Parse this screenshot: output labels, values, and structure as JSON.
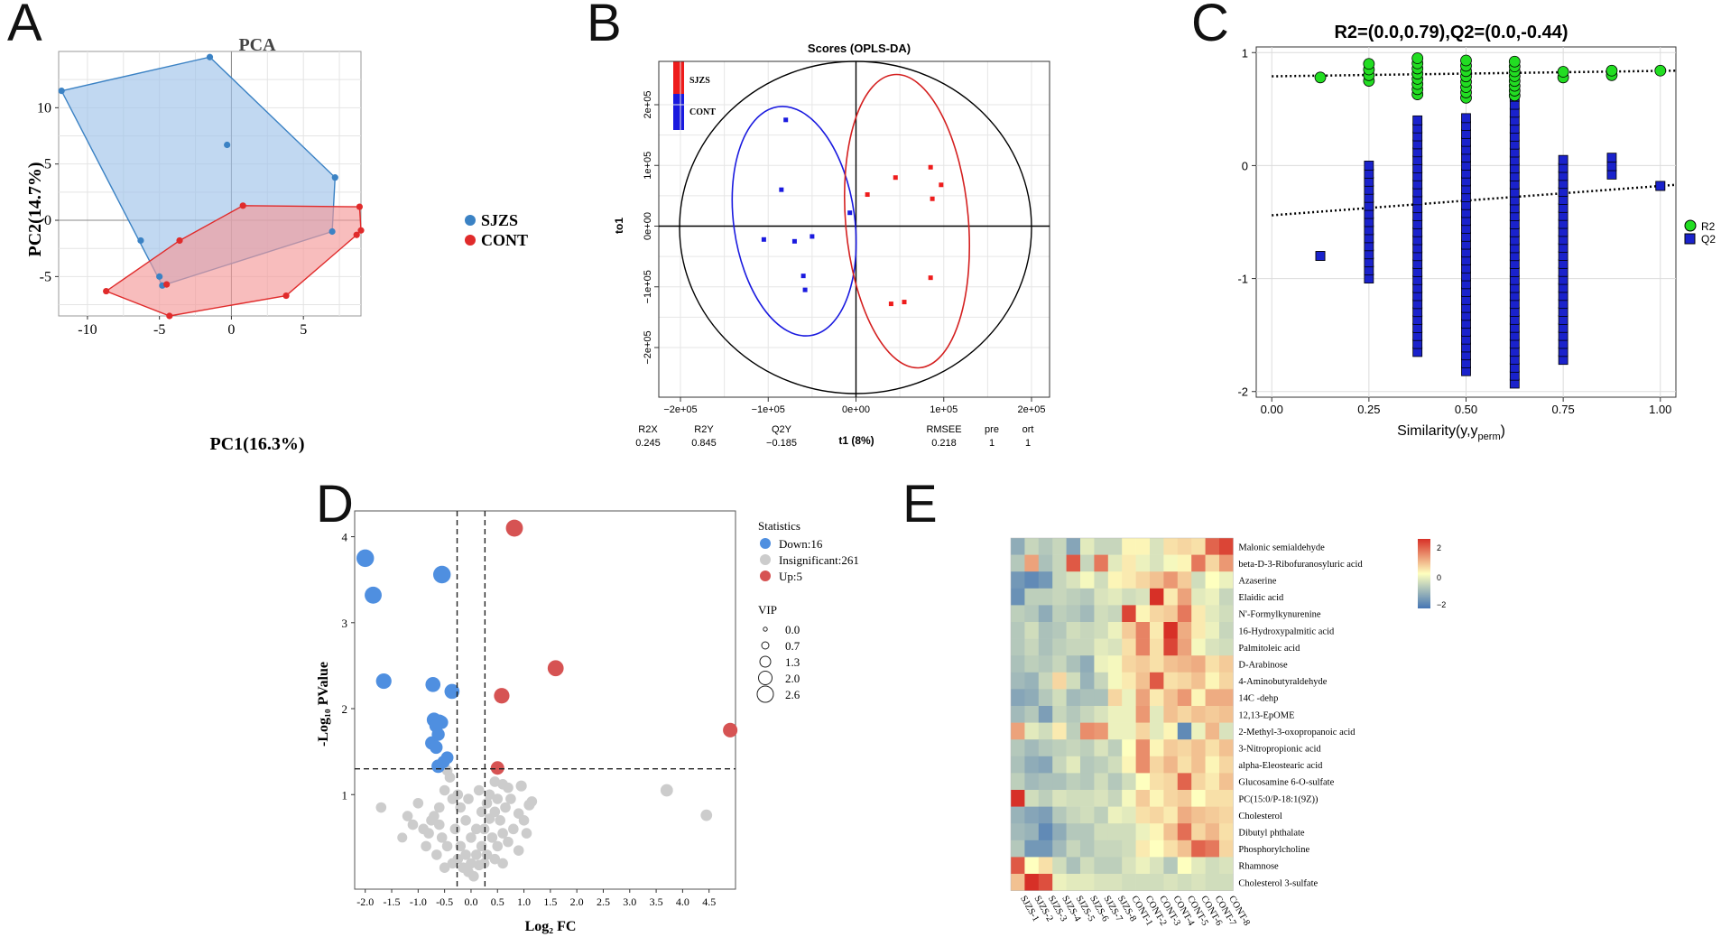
{
  "chart_data": [
    {
      "panel": "A",
      "type": "scatter",
      "title": "PCA",
      "xlabel": "PC1(16.3%)",
      "ylabel": "PC2(14.7%)",
      "xlim": [
        -12,
        9
      ],
      "ylim": [
        -8.5,
        15
      ],
      "xticks": [
        "-10",
        "-5",
        "0",
        "5"
      ],
      "yticks": [
        "-5",
        "0",
        "5",
        "10"
      ],
      "legend": [
        "SJZS",
        "CONT"
      ],
      "colors": {
        "SJZS": "#3b82c4",
        "CONT": "#e02b2b",
        "SJZS_fill": "#9fc3ea",
        "CONT_fill": "#f49a9a"
      },
      "series": [
        {
          "name": "SJZS",
          "x": [
            -11.8,
            -1.5,
            -0.3,
            7.2,
            7.0,
            -4.8,
            -5.0,
            -6.3
          ],
          "y": [
            11.5,
            14.5,
            6.7,
            3.8,
            -1.0,
            -5.8,
            -5.0,
            -1.8
          ]
        },
        {
          "name": "CONT",
          "x": [
            -8.7,
            -4.3,
            3.8,
            8.7,
            9.0,
            8.9,
            0.8,
            -3.6,
            -4.5
          ],
          "y": [
            -6.3,
            -8.5,
            -6.7,
            -1.3,
            -0.9,
            1.2,
            1.3,
            -1.8,
            -5.7
          ]
        }
      ]
    },
    {
      "panel": "B",
      "type": "scatter",
      "title": "Scores (OPLS-DA)",
      "xlabel": "t1 (8%)",
      "ylabel": "to1",
      "xticks": [
        "−2e+05",
        "−1e+05",
        "0e+00",
        "1e+05",
        "2e+05"
      ],
      "yticks": [
        "2e+05",
        "1e+05",
        "0e+00",
        "−1e+05",
        "−2e+05"
      ],
      "legend": [
        "SJZS",
        "CONT"
      ],
      "colors": {
        "SJZS": "#ee1c1c",
        "CONT": "#1a1adf"
      },
      "series": [
        {
          "name": "CONT",
          "x": [
            -80000,
            -85000,
            -105000,
            -70000,
            -50000,
            -60000,
            -58000,
            -7000
          ],
          "y": [
            175000,
            60000,
            -22000,
            -25000,
            -17000,
            -82000,
            -105000,
            22000
          ]
        },
        {
          "name": "SJZS",
          "x": [
            13000,
            45000,
            85000,
            97000,
            87000,
            85000,
            40000,
            55000
          ],
          "y": [
            52000,
            80000,
            97000,
            68000,
            45000,
            -85000,
            -128000,
            -125000
          ]
        }
      ],
      "metrics": {
        "headers": [
          "R2X",
          "R2Y",
          "Q2Y",
          "RMSEE",
          "pre",
          "ort"
        ],
        "values": [
          "0.245",
          "0.845",
          "−0.185",
          "0.218",
          "1",
          "1"
        ]
      }
    },
    {
      "panel": "C",
      "type": "scatter",
      "title": "R2=(0.0,0.79),Q2=(0.0,-0.44)",
      "xlabel": "Similarity(y,y",
      "xlabel_sub": "perm",
      "xlabel_end": ")",
      "xlim": [
        -0.04,
        1.04
      ],
      "ylim": [
        -2.05,
        1.05
      ],
      "xticks": [
        "0.00",
        "0.25",
        "0.50",
        "0.75",
        "1.00"
      ],
      "yticks": [
        "1",
        "0",
        "-1",
        "-2"
      ],
      "legend": [
        "R2",
        "Q2"
      ],
      "colors": {
        "R2": "#22dd22",
        "Q2": "#1a22cc"
      },
      "r2_line": [
        0.79,
        0.84
      ],
      "q2_line": [
        -0.44,
        -0.17
      ],
      "r2_points": {
        "x": [
          0.125,
          0.25,
          0.375,
          0.5,
          0.625,
          0.75,
          0.875,
          1.0
        ],
        "ymin": [
          0.78,
          0.75,
          0.63,
          0.6,
          0.62,
          0.78,
          0.8,
          0.84
        ],
        "ymax": [
          0.78,
          0.9,
          0.95,
          0.93,
          0.92,
          0.83,
          0.84,
          0.84
        ]
      },
      "q2_points": {
        "x": [
          0.125,
          0.25,
          0.375,
          0.5,
          0.625,
          0.75,
          0.875,
          1.0
        ],
        "ymin": [
          -0.8,
          -1.0,
          -1.65,
          -1.82,
          -1.93,
          -1.72,
          -0.08,
          -0.18
        ],
        "ymax": [
          -0.8,
          0.0,
          0.4,
          0.42,
          0.75,
          0.05,
          0.07,
          -0.18
        ]
      }
    },
    {
      "panel": "D",
      "type": "scatter",
      "title": "",
      "xlabel": "Log₂ FC",
      "ylabel": "-Log₁₀ PValue",
      "xlim": [
        -2.2,
        5.0
      ],
      "ylim": [
        -0.1,
        4.3
      ],
      "xticks": [
        "-2.0",
        "-1.5",
        "-1.0",
        "-0.5",
        "0.0",
        "0.5",
        "1.0",
        "1.5",
        "2.0",
        "2.5",
        "3.0",
        "3.5",
        "4.0",
        "4.5"
      ],
      "yticks": [
        "1",
        "2",
        "3",
        "4"
      ],
      "thresholds": {
        "x": [
          -0.263,
          0.263
        ],
        "y": 1.3
      },
      "legend_statistics": {
        "title": "Statistics",
        "items": [
          "Down:16",
          "Insignificant:261",
          "Up:5"
        ],
        "colors": [
          "#4f8fe0",
          "#cccccc",
          "#d65353"
        ]
      },
      "legend_vip": {
        "title": "VIP",
        "items": [
          "0.0",
          "0.7",
          "1.3",
          "2.0",
          "2.6"
        ]
      },
      "down_points": [
        [
          -2.0,
          3.75,
          2.4
        ],
        [
          -1.85,
          3.32,
          2.3
        ],
        [
          -0.55,
          3.56,
          2.4
        ],
        [
          -1.65,
          2.32,
          2.0
        ],
        [
          -0.72,
          2.28,
          1.9
        ],
        [
          -0.36,
          2.2,
          1.9
        ],
        [
          -0.7,
          1.87,
          1.8
        ],
        [
          -0.6,
          1.85,
          1.7
        ],
        [
          -0.56,
          1.84,
          1.6
        ],
        [
          -0.66,
          1.8,
          1.6
        ],
        [
          -0.62,
          1.7,
          1.5
        ],
        [
          -0.74,
          1.6,
          1.6
        ],
        [
          -0.66,
          1.55,
          1.5
        ],
        [
          -0.62,
          1.33,
          1.6
        ],
        [
          -0.52,
          1.38,
          1.4
        ],
        [
          -0.45,
          1.43,
          1.4
        ]
      ],
      "up_points": [
        [
          0.82,
          4.1,
          2.3
        ],
        [
          1.6,
          2.47,
          2.1
        ],
        [
          0.58,
          2.15,
          2.0
        ],
        [
          0.5,
          1.31,
          1.6
        ],
        [
          4.9,
          1.75,
          1.8
        ]
      ],
      "insig_points": [
        [
          3.7,
          1.05,
          1.4
        ],
        [
          4.45,
          0.76,
          1.2
        ],
        [
          -1.7,
          0.85,
          1.0
        ],
        [
          -1.0,
          0.9,
          1.0
        ],
        [
          -1.2,
          0.75,
          1.0
        ],
        [
          -0.9,
          0.6,
          1.0
        ],
        [
          -1.3,
          0.5,
          0.9
        ],
        [
          1.1,
          0.88,
          1.1
        ],
        [
          0.95,
          1.1,
          1.1
        ],
        [
          1.15,
          0.92,
          1.0
        ],
        [
          0.75,
          0.95,
          1.0
        ],
        [
          0.7,
          1.08,
          1.0
        ],
        [
          0.6,
          1.12,
          1.0
        ],
        [
          0.9,
          0.78,
          1.0
        ],
        [
          0.5,
          0.95,
          1.0
        ],
        [
          0.45,
          0.8,
          1.0
        ],
        [
          0.35,
          0.72,
          1.0
        ],
        [
          -0.35,
          0.95,
          1.0
        ],
        [
          -0.5,
          1.05,
          1.0
        ],
        [
          -0.4,
          1.2,
          1.0
        ],
        [
          -0.6,
          0.85,
          1.0
        ],
        [
          -0.75,
          0.7,
          1.0
        ],
        [
          -0.8,
          0.55,
          1.0
        ],
        [
          -0.3,
          0.6,
          1.0
        ],
        [
          0.25,
          0.6,
          1.0
        ],
        [
          0.4,
          0.5,
          1.0
        ],
        [
          0.6,
          0.55,
          1.0
        ],
        [
          0.8,
          0.6,
          1.0
        ],
        [
          0.2,
          0.4,
          1.0
        ],
        [
          -0.2,
          0.4,
          1.0
        ],
        [
          -0.1,
          0.3,
          1.0
        ],
        [
          0.1,
          0.3,
          1.0
        ],
        [
          0.0,
          0.2,
          1.0
        ],
        [
          -0.05,
          0.1,
          1.0
        ],
        [
          0.05,
          0.05,
          1.0
        ],
        [
          -0.15,
          0.15,
          1.0
        ],
        [
          0.15,
          0.18,
          1.0
        ],
        [
          -0.25,
          0.25,
          1.0
        ],
        [
          0.3,
          0.3,
          1.0
        ],
        [
          -0.45,
          0.4,
          1.0
        ],
        [
          0.5,
          0.4,
          1.0
        ],
        [
          -0.55,
          0.5,
          1.0
        ],
        [
          0.7,
          0.45,
          1.0
        ],
        [
          -0.65,
          0.3,
          1.0
        ],
        [
          0.9,
          0.35,
          1.0
        ],
        [
          -0.85,
          0.4,
          1.0
        ],
        [
          0.0,
          0.5,
          1.0
        ],
        [
          0.1,
          0.6,
          1.0
        ],
        [
          -0.1,
          0.7,
          1.0
        ],
        [
          0.2,
          0.8,
          1.0
        ],
        [
          -0.2,
          0.85,
          1.0
        ],
        [
          0.3,
          0.9,
          1.0
        ],
        [
          0.35,
          1.0,
          1.0
        ],
        [
          -0.25,
          1.0,
          1.0
        ],
        [
          0.45,
          1.15,
          1.0
        ],
        [
          -0.45,
          1.28,
          1.0
        ],
        [
          0.15,
          1.05,
          1.0
        ],
        [
          -0.05,
          0.95,
          1.0
        ],
        [
          0.55,
          0.7,
          1.0
        ],
        [
          -0.7,
          0.75,
          1.0
        ],
        [
          0.65,
          0.85,
          1.0
        ],
        [
          -0.6,
          0.65,
          1.0
        ],
        [
          1.0,
          0.7,
          1.0
        ],
        [
          1.05,
          0.55,
          1.0
        ],
        [
          -1.1,
          0.65,
          1.0
        ],
        [
          0.25,
          0.2,
          1.0
        ],
        [
          -0.35,
          0.2,
          1.0
        ],
        [
          0.45,
          0.25,
          1.0
        ],
        [
          -0.5,
          0.15,
          1.0
        ],
        [
          0.6,
          0.2,
          1.0
        ]
      ]
    },
    {
      "panel": "E",
      "type": "heatmap",
      "columns": [
        "SJZS-1",
        "SJZS-2",
        "SJZS-3",
        "SJZS-4",
        "SJZS-5",
        "SJZS-6",
        "SJZS-7",
        "SJZS-8",
        "CONT-1",
        "CONT-2",
        "CONT-3",
        "CONT-4",
        "CONT-5",
        "CONT-6",
        "CONT-7",
        "CONT-8"
      ],
      "rows": [
        "Malonic semialdehyde",
        "beta-D-3-Ribofuranosyluric acid",
        "Azaserine",
        "Elaidic acid",
        "N'-Formylkynurenine",
        "16-Hydroxypalmitic acid",
        "Palmitoleic acid",
        "D-Arabinose",
        "4-Aminobutyraldehyde",
        "14C -dehp",
        "12,13-EpOME",
        "2-Methyl-3-oxopropanoic acid",
        "3-Nitropropionic acid",
        "alpha-Eleostearic acid",
        "Glucosamine 6-O-sulfate",
        "PC(15:0/P-18:1(9Z))",
        "Cholesterol",
        "Dibutyl phthalate",
        "Phosphorylcholine",
        "Rhamnose",
        "Cholesterol 3-sulfate"
      ],
      "colorbar": {
        "min": -2,
        "max": 2,
        "ticks": [
          "2",
          "0",
          "−2"
        ]
      },
      "values": [
        [
          -1.2,
          -0.6,
          -0.8,
          -0.6,
          -1.3,
          -0.3,
          -0.6,
          -0.6,
          0.1,
          0.1,
          -0.4,
          0.3,
          0.4,
          0.3,
          1.5,
          1.8
        ],
        [
          -0.8,
          0.9,
          -0.9,
          -0.6,
          1.6,
          -0.6,
          1.3,
          -0.3,
          0.2,
          -0.2,
          -0.4,
          -0.1,
          0.1,
          1.3,
          0.4,
          1.0
        ],
        [
          -1.5,
          -1.7,
          -1.5,
          -0.6,
          -0.4,
          -0.1,
          -0.5,
          0.1,
          0.2,
          0.4,
          0.6,
          1.0,
          0.5,
          -0.5,
          0.0,
          -0.2
        ],
        [
          -1.6,
          -0.7,
          -0.7,
          -0.6,
          -0.7,
          -0.8,
          -0.4,
          -0.3,
          -0.5,
          -0.4,
          2.2,
          0.2,
          0.9,
          -0.3,
          -0.2,
          -0.6
        ],
        [
          -0.7,
          -0.8,
          -1.2,
          -0.7,
          -0.8,
          -1.0,
          -0.5,
          -0.6,
          1.8,
          0.1,
          0.4,
          0.5,
          1.3,
          0.2,
          -0.3,
          -0.5
        ],
        [
          -0.8,
          -0.5,
          -0.9,
          -0.8,
          -0.5,
          -0.6,
          -0.5,
          -0.2,
          0.5,
          1.2,
          0.2,
          2.0,
          0.8,
          0.2,
          -0.2,
          -0.6
        ],
        [
          -0.8,
          -0.6,
          -0.9,
          -0.7,
          -0.6,
          -0.6,
          -0.3,
          -0.4,
          0.3,
          1.2,
          0.3,
          1.8,
          0.9,
          -0.1,
          -0.4,
          -0.5
        ],
        [
          -0.9,
          -0.7,
          -0.8,
          -0.6,
          -0.9,
          -1.2,
          -0.2,
          -0.1,
          0.4,
          0.5,
          0.3,
          0.6,
          0.7,
          0.8,
          0.3,
          0.5
        ],
        [
          -1.0,
          -1.1,
          -0.6,
          0.4,
          -0.5,
          -1.1,
          -0.6,
          -0.1,
          0.2,
          0.6,
          1.6,
          0.3,
          0.4,
          0.6,
          0.1,
          0.4
        ],
        [
          -1.3,
          -1.2,
          -0.8,
          -0.5,
          -1.0,
          -0.9,
          -0.9,
          0.4,
          -0.2,
          0.9,
          0.2,
          0.6,
          1.0,
          0.1,
          0.8,
          0.8
        ],
        [
          -1.0,
          -0.8,
          -1.4,
          -0.6,
          -0.8,
          -0.6,
          -0.4,
          -0.2,
          -0.2,
          1.0,
          -0.3,
          0.6,
          0.4,
          0.6,
          0.5,
          0.6
        ],
        [
          0.9,
          -0.3,
          -0.5,
          0.2,
          -0.7,
          1.1,
          1.0,
          -0.2,
          -0.2,
          0.4,
          -0.3,
          0.1,
          -1.7,
          -0.2,
          0.7,
          -0.4
        ],
        [
          -0.8,
          -1.0,
          -0.8,
          -0.7,
          -0.6,
          -0.7,
          -0.4,
          -0.7,
          0.0,
          1.1,
          0.1,
          0.5,
          0.4,
          0.6,
          0.3,
          0.6
        ],
        [
          -0.9,
          -1.2,
          -1.3,
          -0.6,
          -0.3,
          -0.8,
          -0.7,
          -0.5,
          0.1,
          1.1,
          0.4,
          0.7,
          0.3,
          0.6,
          0.1,
          0.4
        ],
        [
          -0.7,
          -1.0,
          -0.9,
          -0.9,
          -0.7,
          -0.8,
          -0.5,
          -0.8,
          -0.5,
          0.0,
          0.3,
          0.4,
          1.5,
          0.4,
          0.2,
          0.6
        ],
        [
          2.0,
          -0.5,
          -0.7,
          -0.4,
          -0.5,
          -0.5,
          -0.4,
          -0.6,
          -0.1,
          0.5,
          0.1,
          0.4,
          0.5,
          0.0,
          0.3,
          0.3
        ],
        [
          -1.1,
          -1.3,
          -1.4,
          -0.8,
          -0.6,
          -0.5,
          -0.7,
          -0.2,
          -0.3,
          0.3,
          0.4,
          0.2,
          0.8,
          0.6,
          0.5,
          0.4
        ],
        [
          -1.0,
          -1.1,
          -1.7,
          -1.2,
          -0.8,
          -0.8,
          -0.5,
          -0.5,
          -0.5,
          -0.2,
          0.1,
          0.6,
          1.4,
          0.4,
          0.7,
          0.3
        ],
        [
          -0.8,
          -1.5,
          -1.5,
          -1.0,
          -0.6,
          -0.8,
          -0.6,
          -0.6,
          -0.5,
          0.2,
          0.0,
          0.3,
          0.6,
          1.5,
          1.3,
          0.4
        ],
        [
          1.6,
          0.0,
          0.3,
          -0.5,
          -0.9,
          -0.5,
          -0.7,
          -0.7,
          -0.4,
          -0.2,
          -0.4,
          -0.8,
          0.0,
          -0.3,
          -0.5,
          -0.4
        ],
        [
          0.6,
          2.2,
          1.7,
          -0.2,
          -0.3,
          -0.3,
          -0.4,
          -0.4,
          -0.5,
          -0.5,
          -0.5,
          -0.4,
          -0.5,
          -0.4,
          -0.5,
          -0.5
        ]
      ]
    }
  ],
  "panel_letters": [
    "A",
    "B",
    "C",
    "D",
    "E"
  ]
}
